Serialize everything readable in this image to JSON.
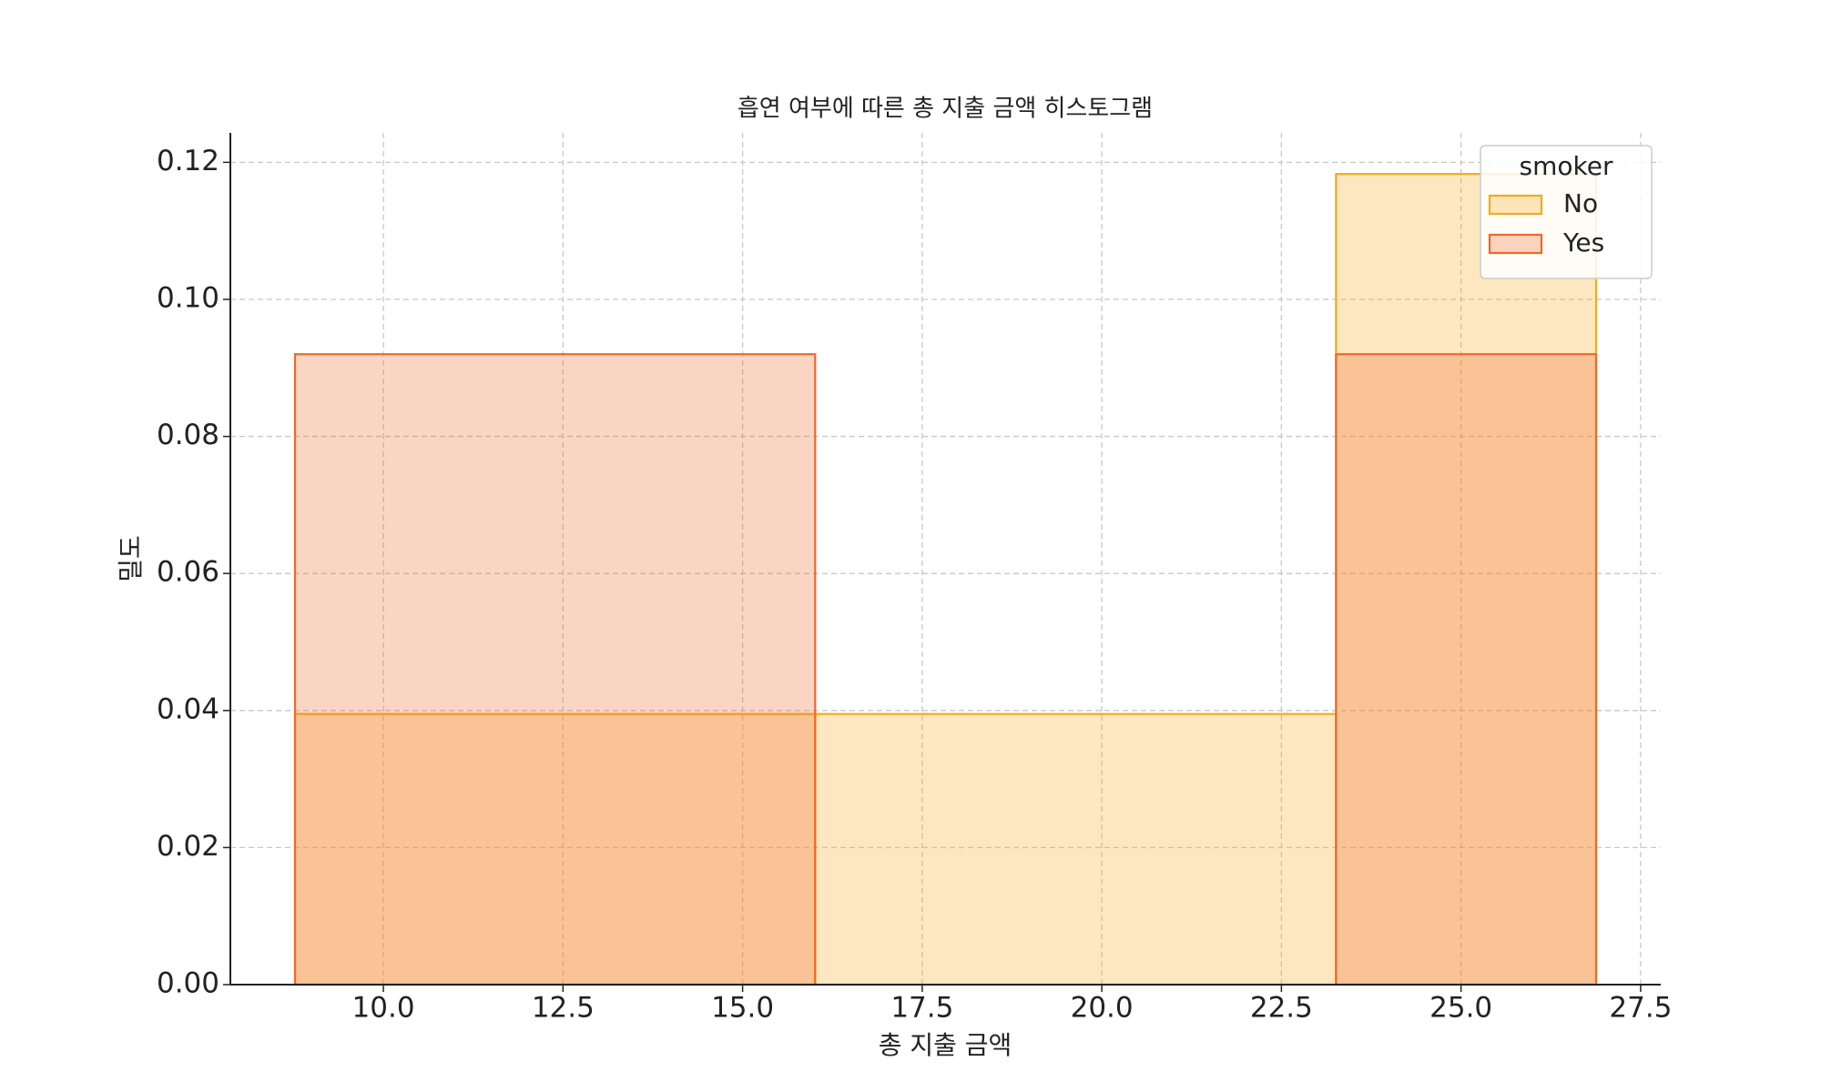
{
  "chart_data": {
    "type": "histogram",
    "title": "흡연 여부에 따른 총 지출 금액 히스토그램",
    "x_label": "총 지출 금액",
    "y_label": "밀도",
    "bins": [
      8.77,
      16.01,
      23.26,
      26.88
    ],
    "series": [
      {
        "name": "No",
        "color": "#f5a91c",
        "values": [
          0.0395,
          0.0395,
          0.1183
        ]
      },
      {
        "name": "Yes",
        "color": "#f0682a",
        "values": [
          0.092,
          0,
          0.092
        ]
      }
    ],
    "legend_title": "smoker",
    "legend": "upper right",
    "xlim": [
      7.87,
      27.78
    ],
    "ylim": [
      0,
      0.1243
    ],
    "xticks": [
      {
        "value": 10,
        "label": "10.0"
      },
      {
        "value": 12.5,
        "label": "12.5"
      },
      {
        "value": 15,
        "label": "15.0"
      },
      {
        "value": 17.5,
        "label": "17.5"
      },
      {
        "value": 20,
        "label": "20.0"
      },
      {
        "value": 22.5,
        "label": "22.5"
      },
      {
        "value": 25,
        "label": "25.0"
      },
      {
        "value": 27.5,
        "label": "27.5"
      }
    ],
    "yticks": [
      {
        "value": 0,
        "label": "0.00"
      },
      {
        "value": 0.02,
        "label": "0.02"
      },
      {
        "value": 0.04,
        "label": "0.04"
      },
      {
        "value": 0.06,
        "label": "0.06"
      },
      {
        "value": 0.08,
        "label": "0.08"
      },
      {
        "value": 0.1,
        "label": "0.10"
      },
      {
        "value": 0.12,
        "label": "0.12"
      }
    ],
    "grid": true
  }
}
